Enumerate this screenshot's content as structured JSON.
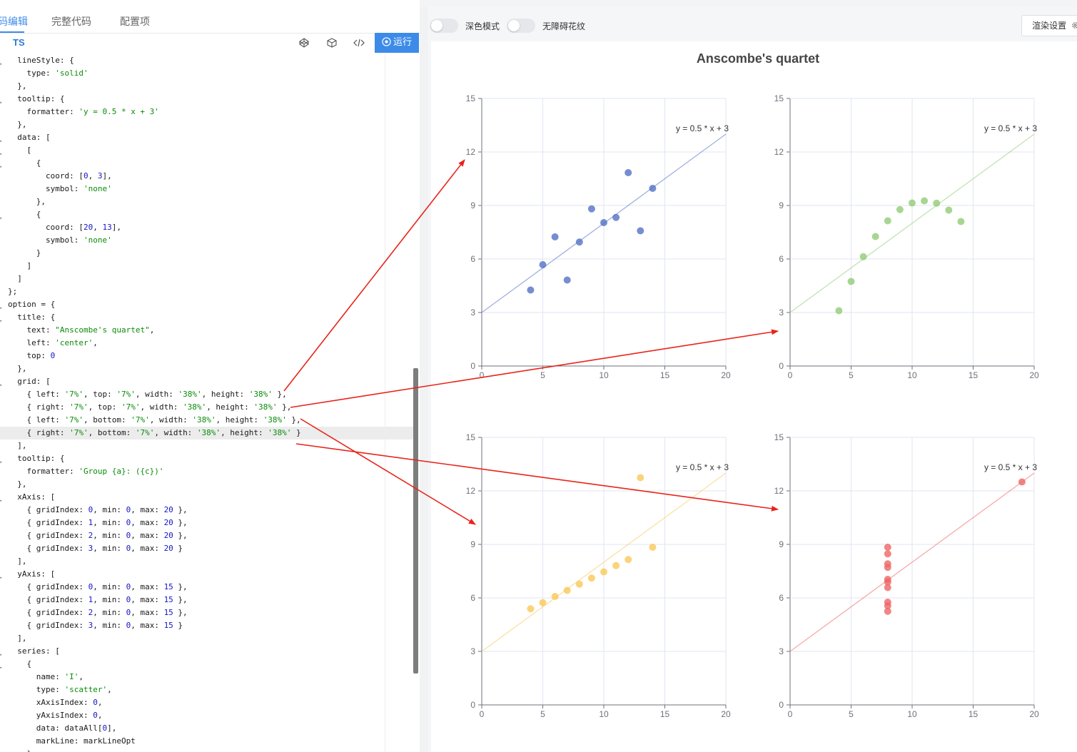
{
  "editor": {
    "tabs": [
      {
        "label": "码编辑",
        "active": true
      },
      {
        "label": "完整代码",
        "active": false
      },
      {
        "label": "配置项",
        "active": false
      }
    ],
    "language": "TS",
    "run_label": "运行",
    "tool_icons": [
      "codepen-icon",
      "cube-icon",
      "code-icon",
      "play-circle-icon"
    ],
    "lines": [
      [
        "  lineStyle: {",
        true
      ],
      [
        "    type: 'solid'",
        false
      ],
      [
        "  },",
        false
      ],
      [
        "  tooltip: {",
        true
      ],
      [
        "    formatter: 'y = 0.5 * x + 3'",
        false
      ],
      [
        "  },",
        false
      ],
      [
        "  data: [",
        true
      ],
      [
        "    [",
        true
      ],
      [
        "      {",
        true
      ],
      [
        "        coord: [0, 3],",
        false
      ],
      [
        "        symbol: 'none'",
        false
      ],
      [
        "      },",
        false
      ],
      [
        "      {",
        true
      ],
      [
        "        coord: [20, 13],",
        false
      ],
      [
        "        symbol: 'none'",
        false
      ],
      [
        "      }",
        false
      ],
      [
        "    ]",
        false
      ],
      [
        "  ]",
        false
      ],
      [
        "};",
        false
      ],
      [
        "option = {",
        true
      ],
      [
        "  title: {",
        true
      ],
      [
        "    text: \"Anscombe's quartet\",",
        false
      ],
      [
        "    left: 'center',",
        false
      ],
      [
        "    top: 0",
        false
      ],
      [
        "  },",
        false
      ],
      [
        "  grid: [",
        true
      ],
      [
        "    { left: '7%', top: '7%', width: '38%', height: '38%' },",
        false
      ],
      [
        "    { right: '7%', top: '7%', width: '38%', height: '38%' },",
        false
      ],
      [
        "    { left: '7%', bottom: '7%', width: '38%', height: '38%' },",
        false
      ],
      [
        "    { right: '7%', bottom: '7%', width: '38%', height: '38%' }",
        false
      ],
      [
        "  ],",
        false
      ],
      [
        "  tooltip: {",
        true
      ],
      [
        "    formatter: 'Group {a}: ({c})'",
        false
      ],
      [
        "  },",
        false
      ],
      [
        "  xAxis: [",
        true
      ],
      [
        "    { gridIndex: 0, min: 0, max: 20 },",
        false
      ],
      [
        "    { gridIndex: 1, min: 0, max: 20 },",
        false
      ],
      [
        "    { gridIndex: 2, min: 0, max: 20 },",
        false
      ],
      [
        "    { gridIndex: 3, min: 0, max: 20 }",
        false
      ],
      [
        "  ],",
        false
      ],
      [
        "  yAxis: [",
        true
      ],
      [
        "    { gridIndex: 0, min: 0, max: 15 },",
        false
      ],
      [
        "    { gridIndex: 1, min: 0, max: 15 },",
        false
      ],
      [
        "    { gridIndex: 2, min: 0, max: 15 },",
        false
      ],
      [
        "    { gridIndex: 3, min: 0, max: 15 }",
        false
      ],
      [
        "  ],",
        false
      ],
      [
        "  series: [",
        true
      ],
      [
        "    {",
        true
      ],
      [
        "      name: 'I',",
        false
      ],
      [
        "      type: 'scatter',",
        false
      ],
      [
        "      xAxisIndex: 0,",
        false
      ],
      [
        "      yAxisIndex: 0,",
        false
      ],
      [
        "      data: dataAll[0],",
        false
      ],
      [
        "      markLine: markLineOpt",
        false
      ],
      [
        "    },",
        false
      ]
    ],
    "highlighted_line": 29
  },
  "preview": {
    "dark_mode_label": "深色模式",
    "accessible_pattern_label": "无障碍花纹",
    "render_settings_label": "渲染设置",
    "render_settings_icon": "gear-icon"
  },
  "chart_data": {
    "title": "Anscombe's quartet",
    "type": "scatter",
    "xlim": [
      0,
      20
    ],
    "ylim": [
      0,
      15
    ],
    "xticks": [
      0,
      5,
      10,
      15,
      20
    ],
    "yticks": [
      0,
      3,
      6,
      9,
      12,
      15
    ],
    "grid": true,
    "markline": {
      "label": "y = 0.5 * x + 3",
      "from": [
        0,
        3
      ],
      "to": [
        20,
        13
      ]
    },
    "panels": [
      {
        "color": "#5470c6",
        "points": [
          [
            10,
            8.04
          ],
          [
            8,
            6.95
          ],
          [
            13,
            7.58
          ],
          [
            9,
            8.81
          ],
          [
            11,
            8.33
          ],
          [
            14,
            9.96
          ],
          [
            6,
            7.24
          ],
          [
            4,
            4.26
          ],
          [
            12,
            10.84
          ],
          [
            7,
            4.82
          ],
          [
            5,
            5.68
          ]
        ]
      },
      {
        "color": "#91cc75",
        "points": [
          [
            10,
            9.14
          ],
          [
            8,
            8.14
          ],
          [
            13,
            8.74
          ],
          [
            9,
            8.77
          ],
          [
            11,
            9.26
          ],
          [
            14,
            8.1
          ],
          [
            6,
            6.13
          ],
          [
            4,
            3.1
          ],
          [
            12,
            9.13
          ],
          [
            7,
            7.26
          ],
          [
            5,
            4.74
          ]
        ]
      },
      {
        "color": "#fac858",
        "points": [
          [
            10,
            7.46
          ],
          [
            8,
            6.77
          ],
          [
            13,
            12.74
          ],
          [
            9,
            7.11
          ],
          [
            11,
            7.81
          ],
          [
            14,
            8.84
          ],
          [
            6,
            6.08
          ],
          [
            4,
            5.39
          ],
          [
            12,
            8.15
          ],
          [
            7,
            6.42
          ],
          [
            5,
            5.73
          ]
        ]
      },
      {
        "color": "#ee6666",
        "points": [
          [
            8,
            6.58
          ],
          [
            8,
            5.76
          ],
          [
            8,
            7.71
          ],
          [
            8,
            8.84
          ],
          [
            8,
            8.47
          ],
          [
            8,
            7.04
          ],
          [
            8,
            5.25
          ],
          [
            19,
            12.5
          ],
          [
            8,
            5.56
          ],
          [
            8,
            7.91
          ],
          [
            8,
            6.89
          ]
        ]
      }
    ]
  }
}
